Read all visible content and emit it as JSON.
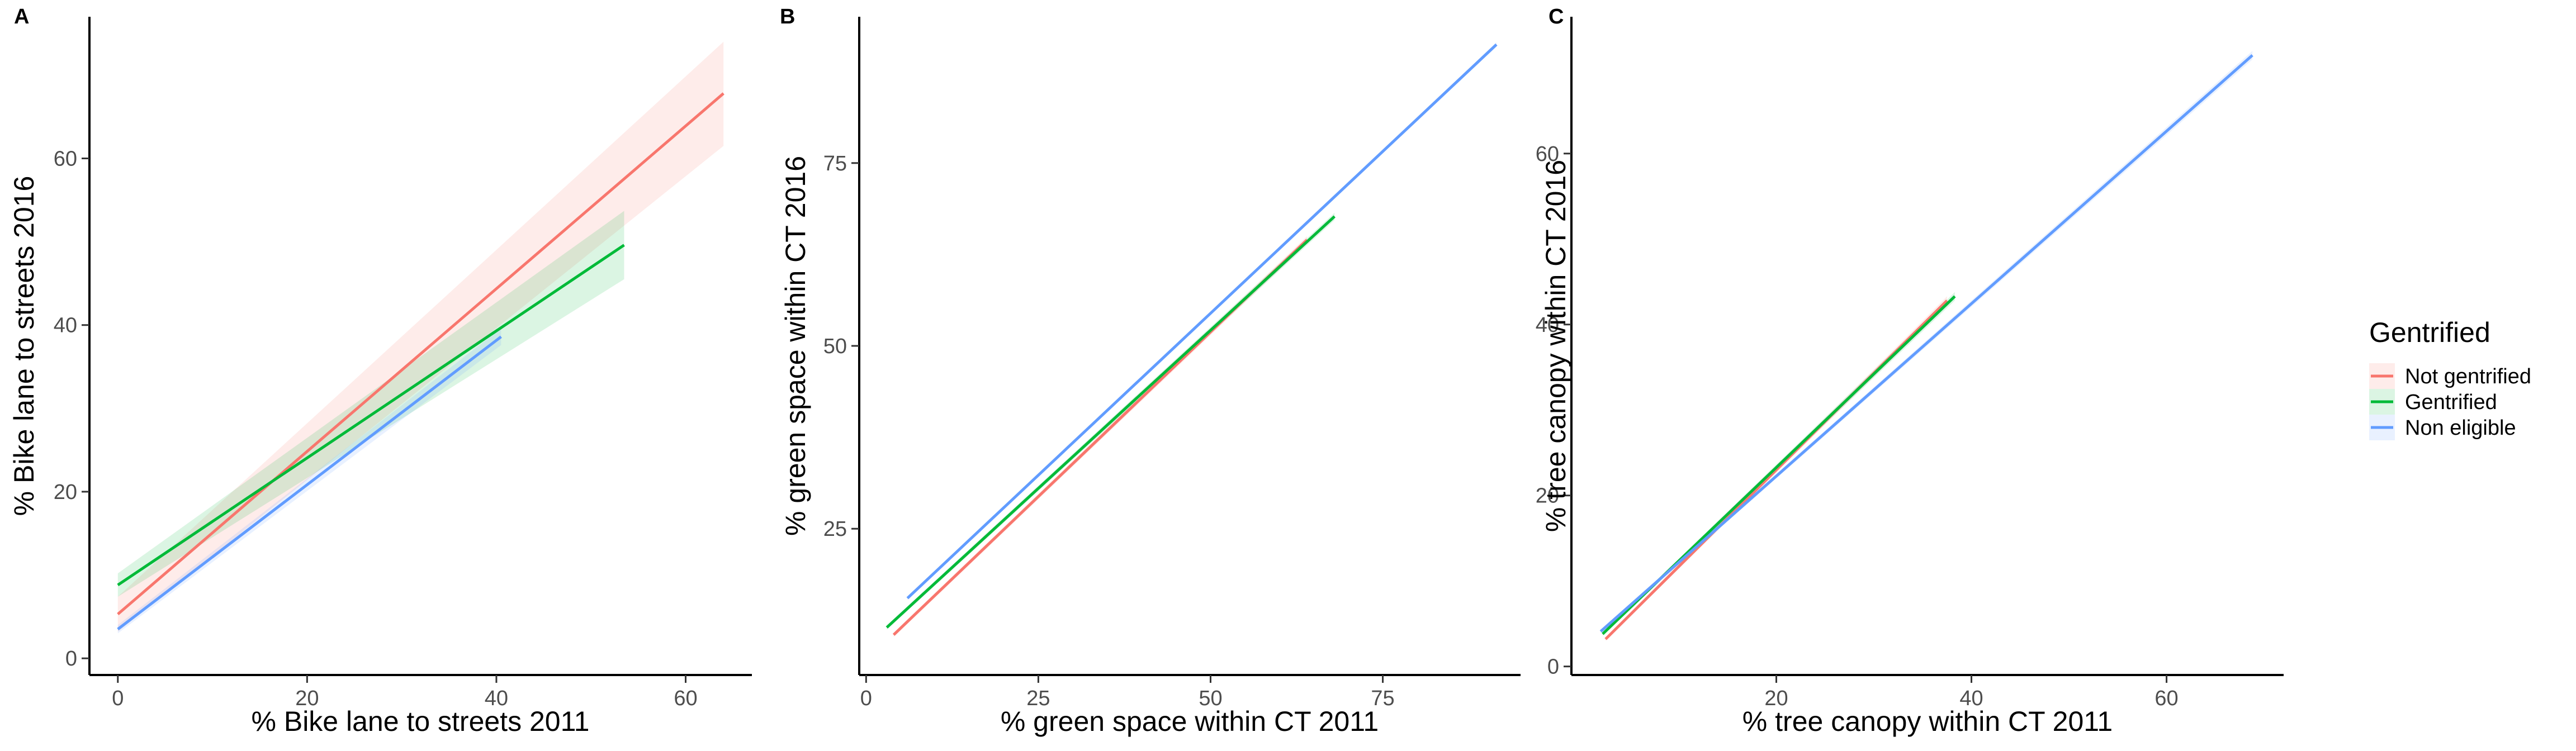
{
  "colors": {
    "Not gentrified": "#F8766D",
    "Gentrified": "#00BA38",
    "Non eligible": "#619CFF"
  },
  "legend": {
    "title": "Gentrified",
    "items": [
      "Not gentrified",
      "Gentrified",
      "Non eligible"
    ]
  },
  "chart_data": [
    {
      "type": "line",
      "tag": "A",
      "xlabel": "% Bike lane to streets 2011",
      "ylabel": "% Bike lane to streets 2016",
      "xlim": [
        -3,
        67
      ],
      "ylim": [
        -2,
        77
      ],
      "xticks": [
        0,
        20,
        40,
        60
      ],
      "yticks": [
        0,
        20,
        40,
        60
      ],
      "grid": false,
      "series": [
        {
          "name": "Not gentrified",
          "x": [
            0,
            64
          ],
          "y": [
            5.3,
            67.8
          ],
          "ci_low": [
            3.2,
            61.5
          ],
          "ci_high": [
            7.4,
            74.0
          ]
        },
        {
          "name": "Gentrified",
          "x": [
            0,
            53.5
          ],
          "y": [
            8.8,
            49.6
          ],
          "ci_low": [
            7.4,
            45.5
          ],
          "ci_high": [
            10.2,
            53.7
          ]
        },
        {
          "name": "Non eligible",
          "x": [
            0,
            40.5
          ],
          "y": [
            3.5,
            38.6
          ],
          "ci_low": [
            3.0,
            37.6
          ],
          "ci_high": [
            4.0,
            39.6
          ]
        }
      ]
    },
    {
      "type": "line",
      "tag": "B",
      "xlabel": "% green space within CT 2011",
      "ylabel": "% green space within CT 2016",
      "xlim": [
        -1,
        95
      ],
      "ylim": [
        5,
        95
      ],
      "xticks": [
        0,
        25,
        50,
        75
      ],
      "yticks": [
        25,
        50,
        75
      ],
      "grid": false,
      "series": [
        {
          "name": "Not gentrified",
          "x": [
            4,
            64
          ],
          "y": [
            10.5,
            64.5
          ],
          "ci_low": [
            10.2,
            64.0
          ],
          "ci_high": [
            10.8,
            65.0
          ]
        },
        {
          "name": "Gentrified",
          "x": [
            3,
            68
          ],
          "y": [
            11.5,
            67.7
          ],
          "ci_low": [
            11.2,
            67.2
          ],
          "ci_high": [
            11.8,
            68.2
          ]
        },
        {
          "name": "Non eligible",
          "x": [
            6,
            91.5
          ],
          "y": [
            15.5,
            91.2
          ],
          "ci_low": [
            15.3,
            90.9
          ],
          "ci_high": [
            15.7,
            91.5
          ]
        }
      ]
    },
    {
      "type": "line",
      "tag": "C",
      "xlabel": "% tree canopy within CT 2011",
      "ylabel": "% tree canopy within CT 2016",
      "xlim": [
        -1,
        72
      ],
      "ylim": [
        -1,
        76
      ],
      "xticks": [
        20,
        40,
        60
      ],
      "yticks": [
        0,
        20,
        40,
        60
      ],
      "grid": false,
      "series": [
        {
          "name": "Not gentrified",
          "x": [
            2.5,
            37.5
          ],
          "y": [
            3.2,
            42.8
          ],
          "ci_low": [
            3.0,
            42.3
          ],
          "ci_high": [
            3.4,
            43.3
          ]
        },
        {
          "name": "Gentrified",
          "x": [
            2.2,
            38.3
          ],
          "y": [
            3.8,
            43.3
          ],
          "ci_low": [
            3.6,
            42.8
          ],
          "ci_high": [
            4.0,
            43.8
          ]
        },
        {
          "name": "Non eligible",
          "x": [
            2,
            68.8
          ],
          "y": [
            4.1,
            71.5
          ],
          "ci_low": [
            3.9,
            71.0
          ],
          "ci_high": [
            4.3,
            72.0
          ]
        }
      ]
    }
  ]
}
